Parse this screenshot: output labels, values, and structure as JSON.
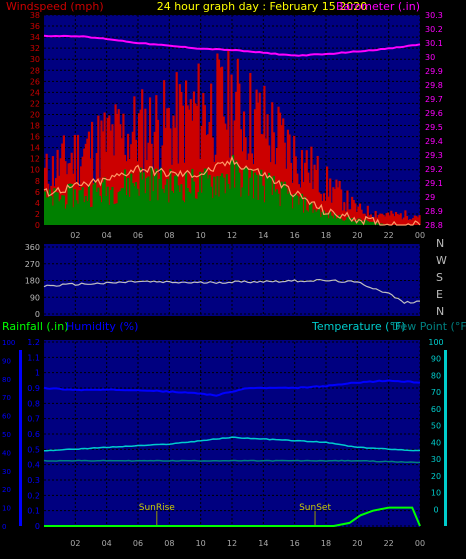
{
  "header": {
    "left_label": "Windspeed (mph)",
    "title": "24 hour graph day : February 15 2020",
    "right_label": "Barometer (.in)"
  },
  "colors": {
    "background": "#000000",
    "plot_bg": "#000080",
    "grid": "#000000",
    "wind_gust": "#cc0000",
    "wind_avg_bar": "#008000",
    "wind_avg_line": "#ff9966",
    "barometer": "#ff00ff",
    "direction": "#c0c0c0",
    "humidity": "#0000ff",
    "temperature": "#00cccc",
    "dewpoint": "#008080",
    "rainfall": "#00ff00",
    "sun_markers": "#999900",
    "left_axis_text": "#cc0000",
    "right_axis_text": "#ff00ff",
    "rain_axis_text": "#00ff00",
    "hum_axis_text": "#0000ff",
    "temp_axis_text": "#00cccc"
  },
  "labels": {
    "rainfall": "Rainfall (.in)",
    "humidity": "Humidity (%)",
    "temperature": "Temperature (°F)",
    "dewpoint": "Dew Point (°F)",
    "sunrise": "SunRise",
    "sunset": "SunSet"
  },
  "chart_data": [
    {
      "type": "line",
      "title": "24 hour graph day : February 15 2020",
      "x_ticks": [
        "02",
        "04",
        "06",
        "08",
        "10",
        "12",
        "14",
        "16",
        "18",
        "20",
        "22",
        "00"
      ],
      "left_axis": {
        "label": "Windspeed (mph)",
        "ticks": [
          0,
          2,
          4,
          6,
          8,
          10,
          12,
          14,
          16,
          18,
          20,
          22,
          24,
          26,
          28,
          30,
          32,
          34,
          36,
          38
        ],
        "ylim": [
          0,
          38
        ]
      },
      "right_axis": {
        "label": "Barometer (.in)",
        "ticks": [
          "28.8",
          "28.9",
          "29",
          "29.1",
          "29.2",
          "29.3",
          "29.4",
          "29.5",
          "29.6",
          "29.7",
          "29.8",
          "29.9",
          "30",
          "30.1",
          "30.2",
          "30.3"
        ],
        "ylim": [
          28.8,
          30.3
        ]
      },
      "series": [
        {
          "name": "Barometer",
          "x": [
            0,
            2,
            4,
            6,
            8,
            10,
            12,
            14,
            16,
            18,
            20,
            22,
            24
          ],
          "y": [
            30.15,
            30.15,
            30.13,
            30.1,
            30.08,
            30.06,
            30.05,
            30.03,
            30.01,
            30.02,
            30.04,
            30.06,
            30.09
          ]
        },
        {
          "name": "Wind gust",
          "x": [
            0,
            2,
            4,
            6,
            8,
            10,
            12,
            14,
            16,
            18,
            20,
            22,
            24
          ],
          "y": [
            10,
            14,
            17,
            19,
            20,
            23,
            24,
            20,
            14,
            8,
            3,
            2,
            2
          ]
        },
        {
          "name": "Wind average",
          "x": [
            0,
            2,
            4,
            6,
            8,
            10,
            12,
            14,
            16,
            18,
            20,
            22,
            24
          ],
          "y": [
            5,
            6,
            7,
            9,
            8,
            8,
            10,
            8,
            5,
            2,
            1,
            0,
            0
          ]
        }
      ]
    },
    {
      "type": "line",
      "left_ticks": [
        "360",
        "270",
        "180",
        "90",
        "0"
      ],
      "right_ticks": [
        "N",
        "W",
        "S",
        "E",
        "N"
      ],
      "ylim": [
        0,
        360
      ],
      "series": [
        {
          "name": "Wind direction",
          "x": [
            0,
            2,
            4,
            6,
            8,
            10,
            12,
            14,
            16,
            18,
            20,
            21,
            22,
            23,
            24
          ],
          "y": [
            150,
            160,
            165,
            175,
            170,
            168,
            172,
            175,
            178,
            180,
            170,
            140,
            110,
            60,
            70
          ]
        }
      ]
    },
    {
      "type": "line",
      "rain_axis": {
        "label": "Rainfall (.in)",
        "ticks": [
          "0",
          "0.1",
          "0.2",
          "0.3",
          "0.4",
          "0.5",
          "0.6",
          "0.7",
          "0.8",
          "0.9",
          "1",
          "1.1",
          "1.2"
        ],
        "ylim": [
          0,
          1.2
        ]
      },
      "hum_axis": {
        "label": "Humidity (%)",
        "ticks": [
          0,
          10,
          20,
          30,
          40,
          50,
          60,
          70,
          80,
          90,
          100
        ],
        "ylim": [
          0,
          100
        ]
      },
      "temp_axis": {
        "label": "Temperature (°F)",
        "ticks": [
          0,
          10,
          20,
          30,
          40,
          50,
          60,
          70,
          80,
          90,
          100
        ],
        "ylim": [
          -10,
          100
        ]
      },
      "markers": [
        {
          "name": "SunRise",
          "x": 7.2
        },
        {
          "name": "SunSet",
          "x": 17.3
        }
      ],
      "series": [
        {
          "name": "Humidity",
          "x": [
            0,
            2,
            4,
            6,
            8,
            10,
            11,
            12,
            13,
            14,
            16,
            18,
            20,
            22,
            24
          ],
          "y": [
            75,
            74,
            74,
            74,
            73,
            72,
            71,
            73,
            75,
            75,
            75,
            76,
            78,
            79,
            78
          ]
        },
        {
          "name": "Temperature",
          "x": [
            0,
            2,
            4,
            6,
            8,
            10,
            12,
            14,
            16,
            18,
            20,
            22,
            24
          ],
          "y": [
            35,
            36,
            37,
            38,
            39,
            41,
            43,
            42,
            41,
            40,
            37,
            36,
            35
          ]
        },
        {
          "name": "Dew Point",
          "x": [
            0,
            4,
            8,
            12,
            16,
            20,
            24
          ],
          "y": [
            29,
            29,
            29,
            29,
            29,
            29,
            28
          ]
        },
        {
          "name": "Rainfall",
          "x": [
            0,
            18.5,
            19.5,
            20.2,
            21,
            22,
            23.5,
            24
          ],
          "y": [
            0,
            0,
            0.02,
            0.07,
            0.1,
            0.12,
            0.12,
            0
          ]
        }
      ]
    }
  ]
}
